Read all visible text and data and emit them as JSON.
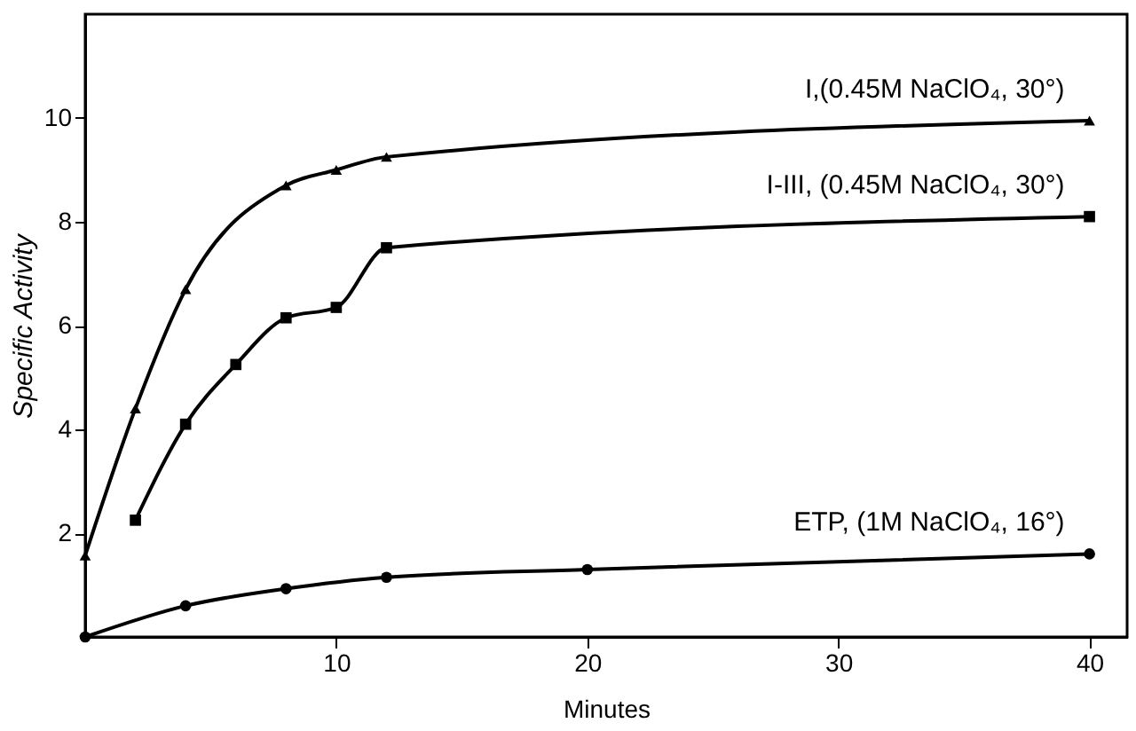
{
  "chart_data": {
    "type": "line",
    "xlabel": "Minutes",
    "ylabel": "Specific Activity",
    "xlim": [
      0,
      41.5
    ],
    "ylim": [
      0,
      12
    ],
    "xticks": [
      10,
      20,
      30,
      40
    ],
    "yticks": [
      2,
      4,
      6,
      8,
      10
    ],
    "grid": false,
    "line_style": "solid",
    "series": [
      {
        "name": "I,(0.45M NaClO₄, 30°)",
        "color": "#000000",
        "marker": "triangle",
        "x": [
          0,
          2,
          4,
          8,
          10,
          12,
          40
        ],
        "values": [
          1.57,
          4.4,
          6.7,
          8.7,
          9.0,
          9.25,
          9.95
        ]
      },
      {
        "name": "I-III, (0.45M NaClO₄, 30°)",
        "color": "#000000",
        "marker": "square",
        "x": [
          2,
          4,
          6,
          8,
          10,
          12,
          40
        ],
        "values": [
          2.25,
          4.1,
          5.25,
          6.15,
          6.35,
          7.5,
          8.1
        ]
      },
      {
        "name": "ETP, (1M NaClO₄, 16°)",
        "color": "#000000",
        "marker": "circle",
        "x": [
          0,
          4,
          8,
          12,
          20,
          40
        ],
        "values": [
          0,
          0.6,
          0.93,
          1.15,
          1.3,
          1.6
        ]
      }
    ]
  }
}
